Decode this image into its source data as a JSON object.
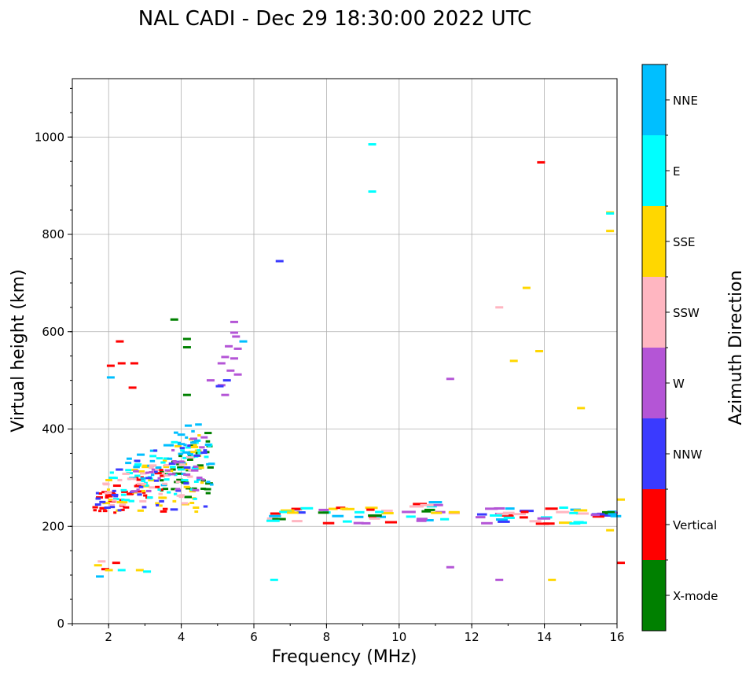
{
  "chart_data": {
    "type": "scatter",
    "title": "NAL CADI - Dec 29 18:30:00 2022 UTC",
    "xlabel": "Frequency (MHz)",
    "ylabel": "Virtual height (km)",
    "xlim": [
      1,
      16
    ],
    "ylim": [
      0,
      1120
    ],
    "xticks": [
      2,
      4,
      6,
      8,
      10,
      12,
      14,
      16
    ],
    "yticks": [
      0,
      200,
      400,
      600,
      800,
      1000
    ],
    "grid": true,
    "colorbar": {
      "label": "Azimuth Direction",
      "categories": [
        {
          "name": "X-mode",
          "color": "#008000"
        },
        {
          "name": "Vertical",
          "color": "#ff0000"
        },
        {
          "name": "NNW",
          "color": "#3a3aff"
        },
        {
          "name": "W",
          "color": "#b455d6"
        },
        {
          "name": "SSW",
          "color": "#ffb6c1"
        },
        {
          "name": "SSE",
          "color": "#ffd700"
        },
        {
          "name": "E",
          "color": "#00ffff"
        },
        {
          "name": "NNE",
          "color": "#00bfff"
        }
      ]
    },
    "clusters": [
      {
        "dir": "X-mode",
        "f": [
          3.4,
          4.8
        ],
        "h": [
          260,
          420
        ],
        "n": 45
      },
      {
        "dir": "Vertical",
        "f": [
          1.5,
          3.5
        ],
        "h": [
          228,
          330
        ],
        "n": 40
      },
      {
        "dir": "SSE",
        "f": [
          1.6,
          4.6
        ],
        "h": [
          230,
          400
        ],
        "n": 45
      },
      {
        "dir": "E",
        "f": [
          2.0,
          4.8
        ],
        "h": [
          250,
          420
        ],
        "n": 50
      },
      {
        "dir": "NNE",
        "f": [
          2.4,
          4.8
        ],
        "h": [
          280,
          440
        ],
        "n": 40
      },
      {
        "dir": "SSW",
        "f": [
          1.8,
          4.2
        ],
        "h": [
          240,
          380
        ],
        "n": 35
      },
      {
        "dir": "NNW",
        "f": [
          1.6,
          4.8
        ],
        "h": [
          230,
          420
        ],
        "n": 35
      },
      {
        "dir": "W",
        "f": [
          2.6,
          4.6
        ],
        "h": [
          270,
          400
        ],
        "n": 25
      }
    ],
    "points": [
      {
        "dir": "Vertical",
        "f": 2.1,
        "h": 125
      },
      {
        "dir": "SSE",
        "f": 1.6,
        "h": 120
      },
      {
        "dir": "SSW",
        "f": 1.7,
        "h": 128
      },
      {
        "dir": "Vertical",
        "f": 1.8,
        "h": 112
      },
      {
        "dir": "SSE",
        "f": 1.9,
        "h": 110
      },
      {
        "dir": "NNE",
        "f": 1.65,
        "h": 97
      },
      {
        "dir": "E",
        "f": 2.25,
        "h": 110
      },
      {
        "dir": "SSE",
        "f": 2.75,
        "h": 110
      },
      {
        "dir": "E",
        "f": 2.95,
        "h": 107
      },
      {
        "dir": "Vertical",
        "f": 2.6,
        "h": 535
      },
      {
        "dir": "Vertical",
        "f": 1.95,
        "h": 530
      },
      {
        "dir": "Vertical",
        "f": 2.2,
        "h": 580
      },
      {
        "dir": "Vertical",
        "f": 2.55,
        "h": 485
      },
      {
        "dir": "Vertical",
        "f": 2.25,
        "h": 535
      },
      {
        "dir": "NNE",
        "f": 1.95,
        "h": 506
      },
      {
        "dir": "X-mode",
        "f": 3.7,
        "h": 625
      },
      {
        "dir": "X-mode",
        "f": 4.05,
        "h": 585
      },
      {
        "dir": "X-mode",
        "f": 4.05,
        "h": 568
      },
      {
        "dir": "X-mode",
        "f": 4.05,
        "h": 470
      },
      {
        "dir": "W",
        "f": 5.35,
        "h": 620
      },
      {
        "dir": "W",
        "f": 5.35,
        "h": 598
      },
      {
        "dir": "W",
        "f": 5.4,
        "h": 590
      },
      {
        "dir": "W",
        "f": 5.2,
        "h": 570
      },
      {
        "dir": "W",
        "f": 5.45,
        "h": 565
      },
      {
        "dir": "W",
        "f": 5.1,
        "h": 548
      },
      {
        "dir": "W",
        "f": 5.35,
        "h": 545
      },
      {
        "dir": "W",
        "f": 5.0,
        "h": 535
      },
      {
        "dir": "W",
        "f": 5.25,
        "h": 520
      },
      {
        "dir": "W",
        "f": 5.45,
        "h": 512
      },
      {
        "dir": "W",
        "f": 4.7,
        "h": 500
      },
      {
        "dir": "W",
        "f": 5.0,
        "h": 490
      },
      {
        "dir": "W",
        "f": 5.1,
        "h": 470
      },
      {
        "dir": "NNW",
        "f": 5.15,
        "h": 500
      },
      {
        "dir": "NNW",
        "f": 4.95,
        "h": 488
      },
      {
        "dir": "NNE",
        "f": 5.6,
        "h": 580
      },
      {
        "dir": "NNW",
        "f": 6.6,
        "h": 745
      },
      {
        "dir": "E",
        "f": 9.15,
        "h": 985
      },
      {
        "dir": "E",
        "f": 9.15,
        "h": 888
      },
      {
        "dir": "Vertical",
        "f": 13.8,
        "h": 948
      },
      {
        "dir": "SSE",
        "f": 15.7,
        "h": 845
      },
      {
        "dir": "E",
        "f": 15.7,
        "h": 843
      },
      {
        "dir": "SSE",
        "f": 15.7,
        "h": 807
      },
      {
        "dir": "SSE",
        "f": 13.4,
        "h": 690
      },
      {
        "dir": "SSW",
        "f": 12.65,
        "h": 650
      },
      {
        "dir": "SSE",
        "f": 13.75,
        "h": 560
      },
      {
        "dir": "SSE",
        "f": 13.05,
        "h": 540
      },
      {
        "dir": "W",
        "f": 11.3,
        "h": 503
      },
      {
        "dir": "SSE",
        "f": 14.9,
        "h": 443
      },
      {
        "dir": "E",
        "f": 6.45,
        "h": 90
      },
      {
        "dir": "W",
        "f": 11.3,
        "h": 116
      },
      {
        "dir": "W",
        "f": 12.65,
        "h": 90
      },
      {
        "dir": "SSE",
        "f": 14.1,
        "h": 90
      },
      {
        "dir": "SSE",
        "f": 15.7,
        "h": 192
      },
      {
        "dir": "Vertical",
        "f": 16.0,
        "h": 125
      },
      {
        "dir": "SSE",
        "f": 16.0,
        "h": 255
      }
    ],
    "f_layer_segments": [
      {
        "f": [
          6.3,
          7.5
        ],
        "h": [
          207,
          240
        ]
      },
      {
        "f": [
          7.7,
          9.7
        ],
        "h": [
          205,
          240
        ]
      },
      {
        "f": [
          10.0,
          11.5
        ],
        "h": [
          210,
          252
        ]
      },
      {
        "f": [
          12.1,
          14.9
        ],
        "h": [
          205,
          240
        ]
      },
      {
        "f": [
          15.0,
          16.0
        ],
        "h": [
          220,
          230
        ]
      }
    ]
  }
}
